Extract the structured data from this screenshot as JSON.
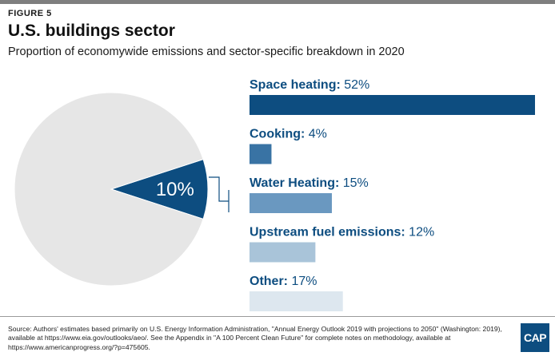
{
  "figure_label": "FIGURE 5",
  "title": "U.S. buildings sector",
  "subtitle": "Proportion of economywide emissions and sector-specific breakdown in 2020",
  "chart_data": [
    {
      "type": "pie",
      "slices": [
        {
          "name": "",
          "value": 10,
          "label": "10%",
          "color": "#0d4d80"
        },
        {
          "name": "",
          "value": 90,
          "label": "",
          "color": "#e6e6e6"
        }
      ]
    },
    {
      "type": "bar",
      "orientation": "horizontal",
      "categories": [
        "Space heating",
        "Cooking",
        "Water Heating",
        "Upstream fuel emissions",
        "Other"
      ],
      "values": [
        52,
        4,
        15,
        12,
        17
      ],
      "value_labels": [
        "52%",
        "4%",
        "15%",
        "12%",
        "17%"
      ],
      "colors": [
        "#0d4d80",
        "#3973a4",
        "#6a98c0",
        "#a9c4d9",
        "#dde7ef"
      ],
      "label_color": "#0d4d80",
      "xlim": [
        0,
        52
      ]
    }
  ],
  "source": "Source: Authors' estimates based primarily on U.S. Energy Information Administration, \"Annual Energy Outlook 2019 with projections to 2050\" (Washington: 2019), available at https://www.eia.gov/outlooks/aeo/. See the Appendix in \"A 100 Percent Clean Future\" for complete notes on methodology, available at https://www.americanprogress.org/?p=475605.",
  "logo_text": "CAP"
}
